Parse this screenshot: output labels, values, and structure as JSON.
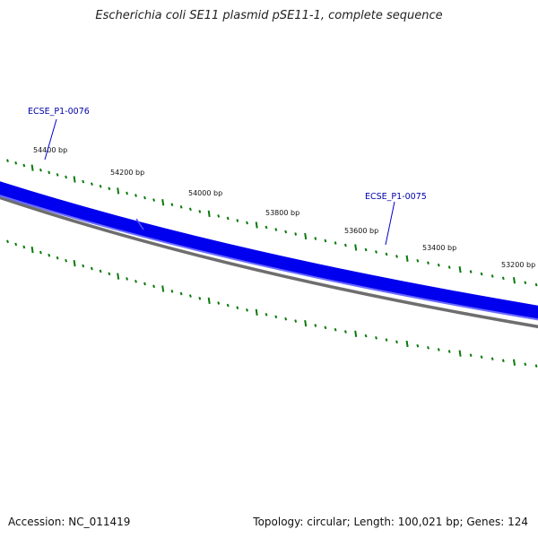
{
  "title": "Escherichia coli SE11 plasmid pSE11-1, complete sequence",
  "footer": {
    "accession": "Accession: NC_011419",
    "summary": "Topology: circular; Length: 100,021 bp; Genes: 124"
  },
  "tick_labels": [
    "54400 bp",
    "54200 bp",
    "54000 bp",
    "53800 bp",
    "53600 bp",
    "53400 bp",
    "53200 bp"
  ],
  "gene_labels": [
    "ECSE_P1-0076",
    "ECSE_P1-0075"
  ],
  "colors": {
    "gene_strand": "#0000ee",
    "gene_strand_light": "#6b6bff",
    "backbone": "#6e6e6e",
    "ticks": "#0a7a0a",
    "gene_label": "#0000aa"
  }
}
